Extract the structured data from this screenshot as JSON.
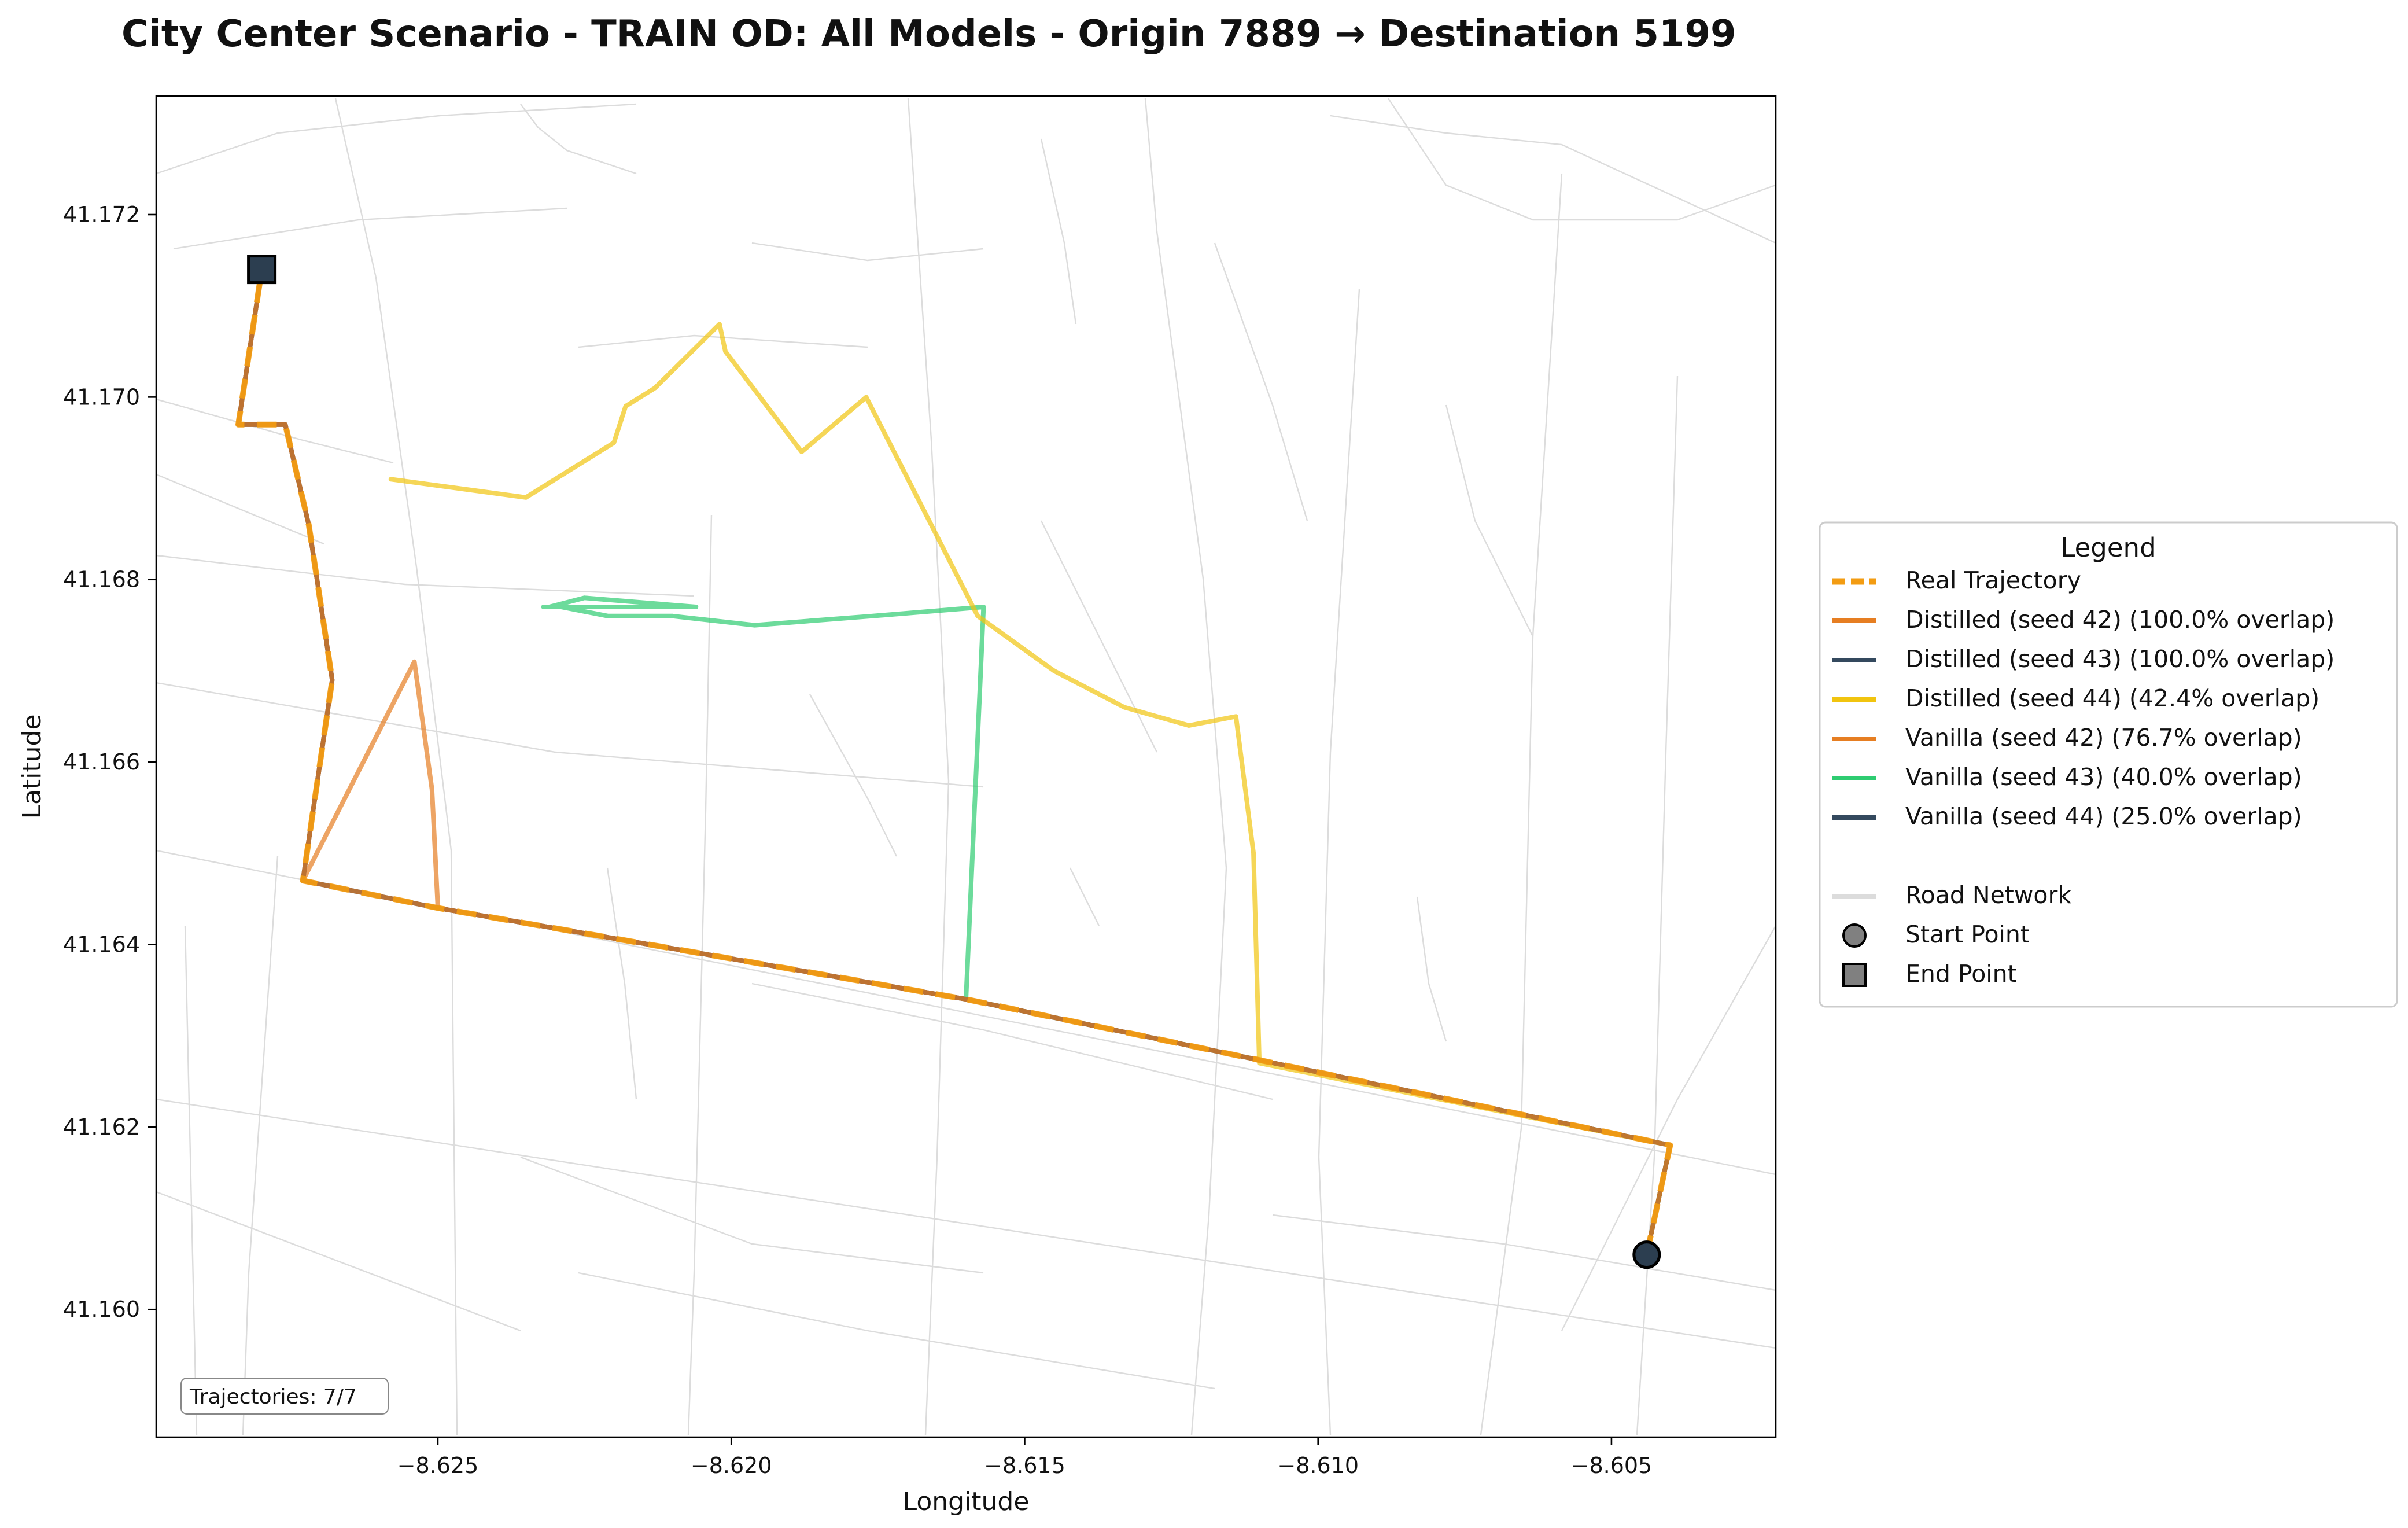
{
  "chart_data": {
    "type": "line",
    "title": "City Center Scenario - TRAIN OD: All Models - Origin 7889 → Destination 5199",
    "xlabel": "Longitude",
    "ylabel": "Latitude",
    "xlim": [
      -8.6298,
      -8.6022
    ],
    "ylim": [
      41.1586,
      41.1733
    ],
    "xticks": [
      -8.625,
      -8.62,
      -8.615,
      -8.61,
      -8.605
    ],
    "xtick_labels": [
      "−8.625",
      "−8.620",
      "−8.615",
      "−8.610",
      "−8.605"
    ],
    "yticks": [
      41.16,
      41.162,
      41.164,
      41.166,
      41.168,
      41.17,
      41.172
    ],
    "ytick_labels": [
      "41.160",
      "41.162",
      "41.164",
      "41.166",
      "41.168",
      "41.170",
      "41.172"
    ],
    "grid": false,
    "legend_placement": "outside-right",
    "legend": {
      "title": "Legend",
      "entries": [
        {
          "label": "Real Trajectory",
          "color": "#f39c12",
          "style": "dashed"
        },
        {
          "label": "Distilled (seed 42) (100.0% overlap)",
          "color": "#e67e22",
          "style": "solid"
        },
        {
          "label": "Distilled (seed 43) (100.0% overlap)",
          "color": "#34495e",
          "style": "solid"
        },
        {
          "label": "Distilled (seed 44) (42.4% overlap)",
          "color": "#f1c40f",
          "style": "solid"
        },
        {
          "label": "Vanilla (seed 42) (76.7% overlap)",
          "color": "#e67e22",
          "style": "solid"
        },
        {
          "label": "Vanilla (seed 43) (40.0% overlap)",
          "color": "#2ecc71",
          "style": "solid"
        },
        {
          "label": "Vanilla (seed 44) (25.0% overlap)",
          "color": "#34495e",
          "style": "solid"
        },
        {
          "label": "Road Network",
          "color": "#dcdcdc",
          "style": "solid"
        },
        {
          "label": "Start Point",
          "color": "#808080",
          "style": "circle"
        },
        {
          "label": "End Point",
          "color": "#808080",
          "style": "square"
        }
      ]
    },
    "annotation": "Trajectories: 7/7",
    "start_point": {
      "x": -8.6044,
      "y": 41.1606
    },
    "end_point": {
      "x": -8.628,
      "y": 41.1714
    },
    "series": [
      {
        "name": "Real Trajectory",
        "color": "#f39c12",
        "dash": true,
        "x": [
          -8.6044,
          -8.604,
          -8.616,
          -8.625,
          -8.6273,
          -8.6268,
          -8.6272,
          -8.6276,
          -8.6278,
          -8.6284,
          -8.628
        ],
        "y": [
          41.1606,
          41.1618,
          41.1634,
          41.1644,
          41.1647,
          41.1669,
          41.1686,
          41.1697,
          41.1697,
          41.1697,
          41.1714
        ]
      },
      {
        "name": "Distilled (seed 42) (100.0% overlap)",
        "color": "#e67e22",
        "x": [
          -8.6044,
          -8.604,
          -8.616,
          -8.625,
          -8.6273,
          -8.6268,
          -8.6272,
          -8.6276,
          -8.6278,
          -8.6284,
          -8.628
        ],
        "y": [
          41.1606,
          41.1618,
          41.1634,
          41.1644,
          41.1647,
          41.1669,
          41.1686,
          41.1697,
          41.1697,
          41.1697,
          41.1714
        ]
      },
      {
        "name": "Distilled (seed 43) (100.0% overlap)",
        "color": "#34495e",
        "x": [
          -8.6044,
          -8.604,
          -8.616,
          -8.625,
          -8.6273,
          -8.6268,
          -8.6272,
          -8.6276,
          -8.6278,
          -8.6284,
          -8.628
        ],
        "y": [
          41.1606,
          41.1618,
          41.1634,
          41.1644,
          41.1647,
          41.1669,
          41.1686,
          41.1697,
          41.1697,
          41.1697,
          41.1714
        ]
      },
      {
        "name": "Distilled (seed 44) (42.4% overlap)",
        "color": "#f1c40f",
        "x": [
          -8.6044,
          -8.604,
          -8.611,
          -8.6111,
          -8.6114,
          -8.6122,
          -8.6133,
          -8.6145,
          -8.6158,
          -8.6177,
          -8.6188,
          -8.6201,
          -8.6202,
          -8.6213,
          -8.6218,
          -8.622,
          -8.6235,
          -8.6258
        ],
        "y": [
          41.1606,
          41.1618,
          41.1627,
          41.165,
          41.1665,
          41.1664,
          41.1666,
          41.167,
          41.1676,
          41.17,
          41.1694,
          41.1705,
          41.1708,
          41.1701,
          41.1699,
          41.1695,
          41.1689,
          41.1691
        ]
      },
      {
        "name": "Vanilla (seed 42) (76.7% overlap)",
        "color": "#e67e22",
        "x": [
          -8.6044,
          -8.604,
          -8.616,
          -8.625,
          -8.6251,
          -8.6254,
          -8.6273,
          -8.6268,
          -8.6272,
          -8.6276,
          -8.6278,
          -8.6284,
          -8.628
        ],
        "y": [
          41.1606,
          41.1618,
          41.1634,
          41.1644,
          41.1657,
          41.1671,
          41.1647,
          41.1669,
          41.1686,
          41.1697,
          41.1697,
          41.1697,
          41.1714
        ]
      },
      {
        "name": "Vanilla (seed 43) (40.0% overlap)",
        "color": "#2ecc71",
        "x": [
          -8.6044,
          -8.604,
          -8.616,
          -8.6157,
          -8.6176,
          -8.6196,
          -8.621,
          -8.6221,
          -8.6229,
          -8.6232,
          -8.6232,
          -8.6231,
          -8.6231,
          -8.6206,
          -8.6225,
          -8.6231
        ],
        "y": [
          41.1606,
          41.1618,
          41.1634,
          41.1677,
          41.1676,
          41.1675,
          41.1676,
          41.1676,
          41.1677,
          41.1677,
          41.1677,
          41.1677,
          41.1677,
          41.1677,
          41.1678,
          41.1677
        ]
      },
      {
        "name": "Vanilla (seed 44) (25.0% overlap)",
        "color": "#34495e",
        "x": [
          -8.6044,
          -8.604,
          -8.616,
          -8.625,
          -8.6273,
          -8.6268,
          -8.6272,
          -8.6276,
          -8.6278,
          -8.6284,
          -8.628
        ],
        "y": [
          41.1606,
          41.1618,
          41.1634,
          41.1644,
          41.1647,
          41.1669,
          41.1686,
          41.1697,
          41.1697,
          41.1697,
          41.1714
        ]
      }
    ]
  }
}
